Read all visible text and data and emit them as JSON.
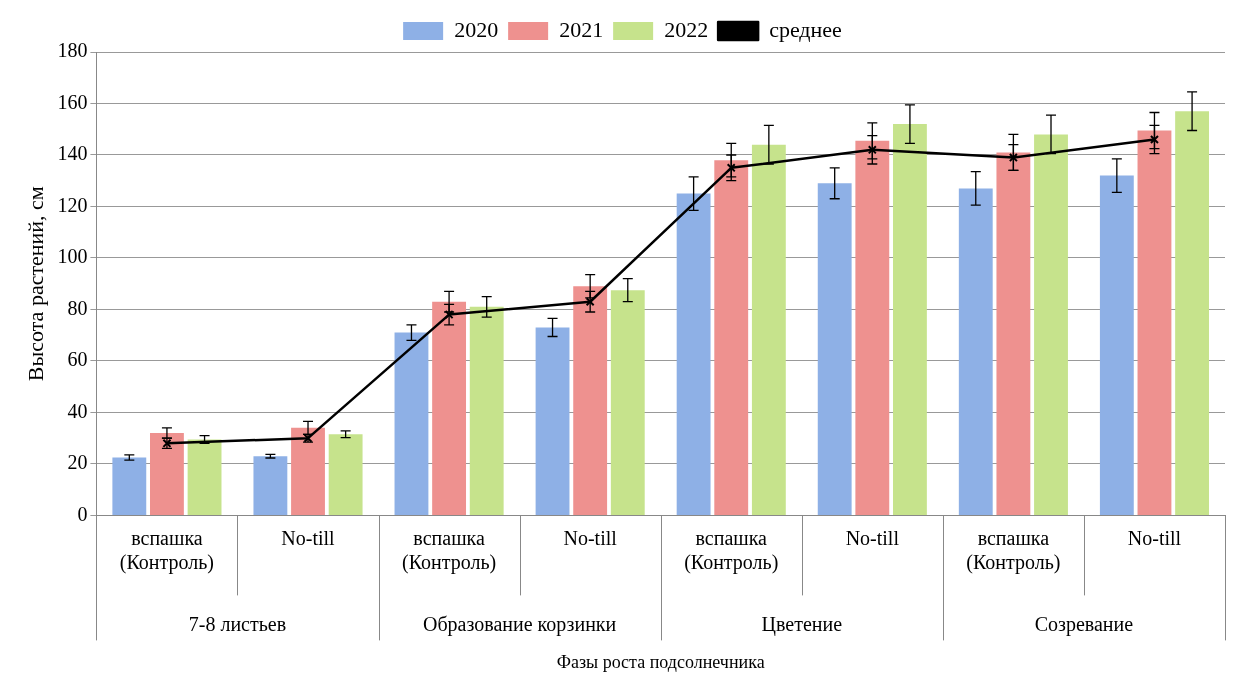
{
  "chart_data": {
    "type": "bar",
    "xlabel": "Фазы роста подсолнечника",
    "ylabel": "Высота растений, см",
    "categories": [
      "вспашка (Контроль)",
      "No-till",
      "вспашка (Контроль)",
      "No-till",
      "вспашка (Контроль)",
      "No-till",
      "вспашка (Контроль)",
      "No-till"
    ],
    "annotations": [
      "7-8 листьев",
      "Образование корзинки",
      "Цветение",
      "Созревание"
    ],
    "series": [
      {
        "name": "2020",
        "color": "#8eb0e6",
        "values": [
          22.5,
          23,
          71,
          73,
          125,
          129,
          127,
          132
        ],
        "errors": [
          1,
          0.7,
          3,
          3.5,
          6.5,
          6,
          6.5,
          6.5
        ]
      },
      {
        "name": "2021",
        "color": "#ee918f",
        "values": [
          32,
          34,
          83,
          89,
          138,
          145.5,
          141,
          149.5
        ],
        "errors": [
          2,
          2.5,
          4,
          4.5,
          6.5,
          7,
          7,
          7
        ]
      },
      {
        "name": "2022",
        "color": "#c6e38c",
        "values": [
          29.5,
          31.5,
          81,
          87.5,
          144,
          152,
          148,
          157
        ],
        "errors": [
          1.5,
          1.3,
          4,
          4.5,
          7.5,
          7.5,
          7.5,
          7.5
        ]
      },
      {
        "name": "среднее",
        "type": "line",
        "color": "#000000",
        "marker": "cross",
        "values": [
          28,
          30,
          78,
          83,
          135,
          142,
          139,
          146
        ],
        "errors": [
          2,
          1.5,
          4,
          4,
          5,
          5.5,
          5,
          5.5
        ]
      }
    ],
    "ylim": [
      0,
      180
    ],
    "yticks": [
      0,
      20,
      40,
      60,
      80,
      100,
      120,
      140,
      160,
      180
    ],
    "grid": "y",
    "legend": "top"
  }
}
